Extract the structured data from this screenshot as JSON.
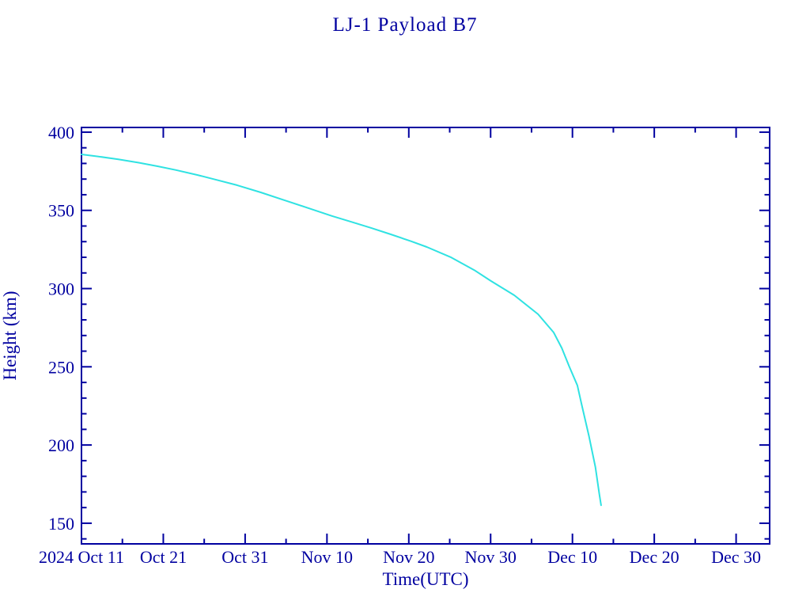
{
  "chart_data": {
    "type": "line",
    "title": "LJ-1 Payload B7",
    "xlabel": "Time(UTC)",
    "ylabel": "Height (km)",
    "x_unit": "days since 2024 Oct 11",
    "axis_color": "#0000a0",
    "line_color": "#2fe2e2",
    "background_color": "#ffffff",
    "grid": "off",
    "legend": "none",
    "x_range_days": [
      0,
      84.1
    ],
    "y_range": [
      136.8,
      403.0
    ],
    "x_ticks": [
      {
        "day": 0,
        "label": "2024 Oct 11"
      },
      {
        "day": 10,
        "label": "Oct 21"
      },
      {
        "day": 20,
        "label": "Oct 31"
      },
      {
        "day": 30,
        "label": "Nov 10"
      },
      {
        "day": 40,
        "label": "Nov 20"
      },
      {
        "day": 50,
        "label": "Nov 30"
      },
      {
        "day": 60,
        "label": "Dec 10"
      },
      {
        "day": 70,
        "label": "Dec 20"
      },
      {
        "day": 80,
        "label": "Dec 30"
      }
    ],
    "x_minor_days": [
      5,
      15,
      25,
      35,
      45,
      55,
      65,
      75
    ],
    "y_ticks": [
      150,
      200,
      250,
      300,
      350,
      400
    ],
    "y_minor": [
      140,
      160,
      170,
      180,
      190,
      210,
      220,
      230,
      240,
      260,
      270,
      280,
      290,
      310,
      320,
      330,
      340,
      360,
      370,
      380,
      390
    ],
    "series": [
      {
        "name": "Height (km)",
        "points": [
          [
            0,
            385.8
          ],
          [
            2,
            384.5
          ],
          [
            4.5,
            382.6
          ],
          [
            7,
            380.5
          ],
          [
            9.3,
            378.2
          ],
          [
            11.5,
            375.8
          ],
          [
            14.2,
            372.6
          ],
          [
            16.5,
            369.5
          ],
          [
            19,
            366.1
          ],
          [
            21.9,
            361.5
          ],
          [
            24.8,
            356.5
          ],
          [
            27.7,
            351.5
          ],
          [
            30.6,
            346.4
          ],
          [
            33,
            342.6
          ],
          [
            35.4,
            338.8
          ],
          [
            37.8,
            334.7
          ],
          [
            40.3,
            330.2
          ],
          [
            42.2,
            326.6
          ],
          [
            45.1,
            320.1
          ],
          [
            48,
            311.8
          ],
          [
            50,
            305.0
          ],
          [
            52.9,
            295.7
          ],
          [
            55.8,
            283.6
          ],
          [
            57.7,
            272.0
          ],
          [
            58.7,
            262.0
          ],
          [
            59.6,
            250.2
          ],
          [
            60.6,
            238.1
          ],
          [
            61.1,
            226.4
          ],
          [
            62.0,
            206.1
          ],
          [
            62.8,
            185.9
          ],
          [
            63.3,
            168.2
          ],
          [
            63.5,
            161.5
          ]
        ]
      }
    ]
  }
}
